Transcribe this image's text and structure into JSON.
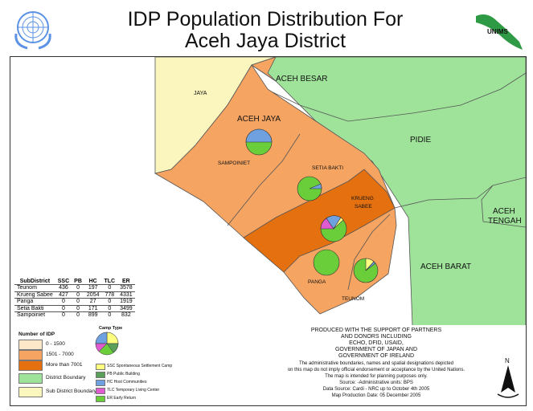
{
  "title_line1": "IDP Population Distribution For",
  "title_line2": "Aceh Jaya District",
  "logo_text": "UNIMS",
  "map_labels": {
    "jaya": "JAYA",
    "aceh_besar": "ACEH BESAR",
    "aceh_jaya": "ACEH JAYA",
    "pidie": "PIDIE",
    "sampoiniet": "SAMPOINIET",
    "setia_bakti": "SETIA BAKTI",
    "krueng_sabee_1": "KRUENG",
    "krueng_sabee_2": "SABEE",
    "aceh_tengah_1": "ACEH",
    "aceh_tengah_2": "TENGAH",
    "aceh_barat": "ACEH BARAT",
    "panga": "PANGA",
    "teunom": "TEUNOM"
  },
  "table": {
    "headers": [
      "SubDistrict",
      "SSC",
      "PB",
      "HC",
      "TLC",
      "ER"
    ],
    "rows": [
      [
        "Teunom",
        "436",
        "0",
        "197",
        "0",
        "3578"
      ],
      [
        "Krueng Sabee",
        "427",
        "0",
        "2054",
        "778",
        "4331"
      ],
      [
        "Panga",
        "0",
        "0",
        "27",
        "0",
        "1919"
      ],
      [
        "Setia Bakti",
        "0",
        "0",
        "171",
        "0",
        "3499"
      ],
      [
        "Sampoiniet",
        "0",
        "0",
        "899",
        "0",
        "832"
      ]
    ]
  },
  "legend": {
    "number_title": "Number of IDP",
    "classes": [
      {
        "label": "0 - 1500",
        "color": "#fde9c9"
      },
      {
        "label": "1501 - 7000",
        "color": "#f5a462"
      },
      {
        "label": "More than 7001",
        "color": "#e5700f"
      }
    ],
    "district_boundary": "District Boundary",
    "sub_district_boundary": "Sub District Boundary",
    "camp_type_title": "Camp Type",
    "camp_types": [
      {
        "label": "SSC Spontaneous Settlement Camp",
        "color": "#ffff80"
      },
      {
        "label": "PB    Public Building",
        "color": "#5aa05a"
      },
      {
        "label": "HC    Host Communities",
        "color": "#6fa0e0"
      },
      {
        "label": "TLC Temporary Living Center",
        "color": "#e05ad0"
      },
      {
        "label": "ER    Early Return",
        "color": "#6acd3a"
      }
    ]
  },
  "notes": {
    "line1": "PRODUCED WITH THE SUPPORT OF PARTNERS",
    "line2": "AND DONORS INCLUDING",
    "line3": "ECHO, DFID, USAID,",
    "line4": "GOVERNMENT OF JAPAN AND",
    "line5": "GOVERNMENT OF IRELAND",
    "line6": "The administrative boundaries, names and spatial designations depicted",
    "line7": "on this map do not imply official endorsement or acceptance by the United Nations.",
    "line8": "The map is intended for planning purposes only.",
    "line9": "Source: -Administrative units: BPS",
    "line10": "Data Source: Cardi - NRC up to October 4th 2005",
    "line11": "Map Production Date: 05 December 2005"
  },
  "north_label": "N",
  "colors": {
    "green_district": "#9fe39a",
    "jaya_yellow": "#fbf6be",
    "mid_orange": "#f5a462",
    "dark_orange": "#e5700f",
    "sea": "#ffffff"
  }
}
